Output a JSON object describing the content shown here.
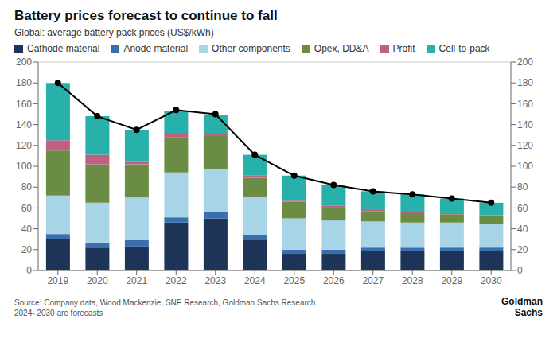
{
  "chart_data": {
    "type": "bar",
    "title": "Battery prices forecast to continue to fall",
    "subtitle": "Global: average battery pack prices (US$/kWh)",
    "categories": [
      "2019",
      "2020",
      "2021",
      "2022",
      "2023",
      "2024",
      "2025",
      "2026",
      "2027",
      "2028",
      "2029",
      "2030"
    ],
    "stacked": true,
    "grid": true,
    "legend": "upper left",
    "series": [
      {
        "name": "Cathode material",
        "color": "#1e3358",
        "values": [
          30,
          22,
          23,
          46,
          50,
          29,
          16,
          16,
          19,
          19,
          19,
          19
        ]
      },
      {
        "name": "Anode material",
        "color": "#3a6faf",
        "values": [
          5,
          5,
          6,
          5,
          6,
          5,
          4,
          4,
          3,
          3,
          3,
          3
        ]
      },
      {
        "name": "Other components",
        "color": "#a8d4e8",
        "values": [
          37,
          38,
          41,
          43,
          41,
          37,
          30,
          28,
          25,
          24,
          24,
          23
        ]
      },
      {
        "name": "Opex, DD&A",
        "color": "#6b8c45",
        "values": [
          43,
          37,
          32,
          34,
          32,
          18,
          16,
          13,
          10,
          9,
          8,
          7
        ]
      },
      {
        "name": "Profit",
        "color": "#c06080",
        "values": [
          10,
          9,
          2,
          3,
          2,
          2,
          1,
          1,
          1,
          1,
          1,
          1
        ]
      },
      {
        "name": "Cell-to-pack",
        "color": "#28b0aa",
        "values": [
          55,
          37,
          31,
          22,
          18,
          20,
          24,
          20,
          18,
          17,
          14,
          12
        ]
      },
      {
        "type": "line",
        "axis": "y2",
        "color": "#000000",
        "marker": "circle",
        "values": [
          180,
          148,
          135,
          154,
          150,
          111,
          91,
          82,
          76,
          73,
          69,
          65
        ]
      }
    ],
    "ylim": [
      0,
      200
    ],
    "yticks": [
      0,
      20,
      40,
      60,
      80,
      100,
      120,
      140,
      160,
      180,
      200
    ],
    "y2lim": [
      0,
      200
    ],
    "y2ticks": [
      0,
      20,
      40,
      60,
      80,
      100,
      120,
      140,
      160,
      180,
      200
    ],
    "annotations": [
      "Source: Company data, Wood Mackenzie, SNE Research, Goldman Sachs Research\n2024- 2030 are forecasts",
      "Goldman\nSachs"
    ]
  }
}
